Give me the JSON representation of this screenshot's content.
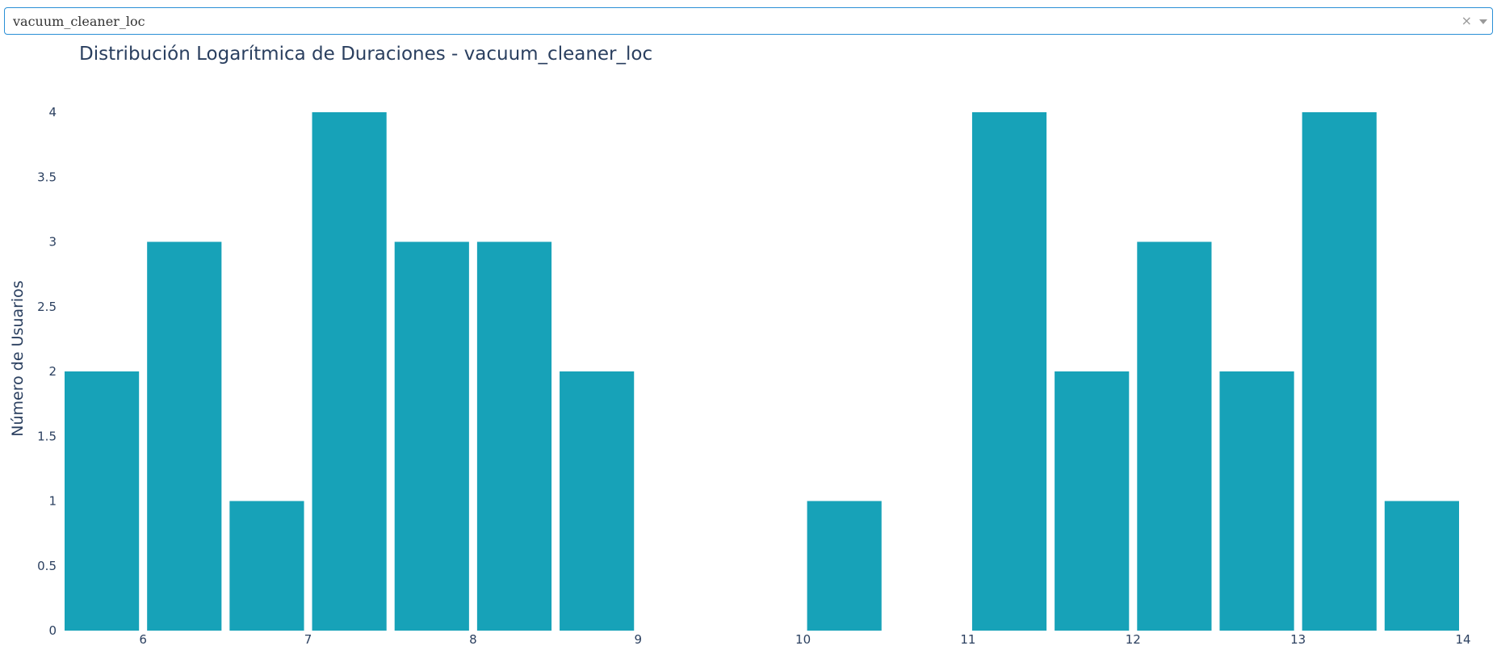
{
  "dropdown": {
    "selected_value": "vacuum_cleaner_loc",
    "clear_symbol": "×",
    "arrow_icon": "caret-down-icon"
  },
  "chart_data": {
    "type": "bar",
    "title": "Distribución Logarítmica de Duraciones - vacuum_cleaner_loc",
    "xlabel": "",
    "ylabel": "Número de Usuarios",
    "bar_color": "#17a2b8",
    "bin_width": 0.5,
    "bins": [
      {
        "x0": 5.5,
        "x1": 6.0,
        "count": 2
      },
      {
        "x0": 6.0,
        "x1": 6.5,
        "count": 3
      },
      {
        "x0": 6.5,
        "x1": 7.0,
        "count": 1
      },
      {
        "x0": 7.0,
        "x1": 7.5,
        "count": 4
      },
      {
        "x0": 7.5,
        "x1": 8.0,
        "count": 3
      },
      {
        "x0": 8.0,
        "x1": 8.5,
        "count": 3
      },
      {
        "x0": 8.5,
        "x1": 9.0,
        "count": 2
      },
      {
        "x0": 10.0,
        "x1": 10.5,
        "count": 1
      },
      {
        "x0": 11.0,
        "x1": 11.5,
        "count": 4
      },
      {
        "x0": 11.5,
        "x1": 12.0,
        "count": 2
      },
      {
        "x0": 12.0,
        "x1": 12.5,
        "count": 3
      },
      {
        "x0": 12.5,
        "x1": 13.0,
        "count": 2
      },
      {
        "x0": 13.0,
        "x1": 13.5,
        "count": 4
      },
      {
        "x0": 13.5,
        "x1": 14.0,
        "count": 1
      }
    ],
    "xlim": [
      5.5,
      14.0
    ],
    "ylim": [
      0,
      4
    ],
    "x_ticks": [
      "6",
      "7",
      "8",
      "9",
      "10",
      "11",
      "12",
      "13",
      "14"
    ],
    "y_ticks": [
      "0",
      "0.5",
      "1",
      "1.5",
      "2",
      "2.5",
      "3",
      "3.5",
      "4"
    ],
    "grid": false
  }
}
